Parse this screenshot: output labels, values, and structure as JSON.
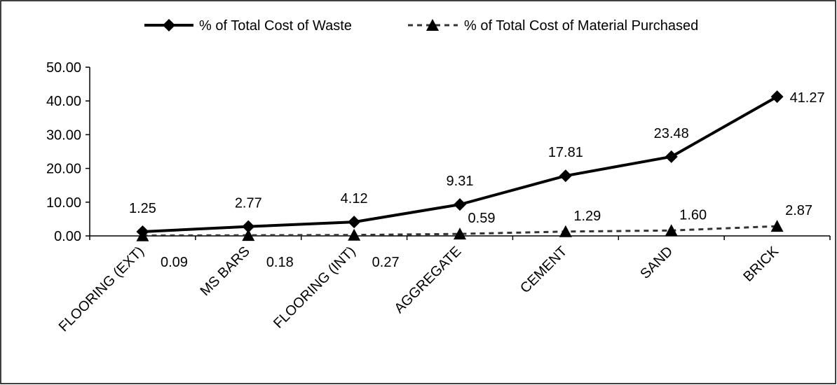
{
  "chart_data": {
    "type": "line",
    "categories": [
      "FLOORING (EXT)",
      "MS BARS",
      "FLOORING (INT)",
      "AGGREGATE",
      "CEMENT",
      "SAND",
      "BRICK"
    ],
    "series": [
      {
        "name": "% of Total Cost of Waste",
        "values": [
          1.25,
          2.77,
          4.12,
          9.31,
          17.81,
          23.48,
          41.27
        ],
        "labels": [
          "1.25",
          "2.77",
          "4.12",
          "9.31",
          "17.81",
          "23.48",
          "41.27"
        ],
        "marker": "diamond",
        "line_style": "solid",
        "color": "#000000"
      },
      {
        "name": "% of Total Cost of Material Purchased",
        "values": [
          0.09,
          0.18,
          0.27,
          0.59,
          1.29,
          1.6,
          2.87
        ],
        "labels": [
          "0.09",
          "0.18",
          "0.27",
          "0.59",
          "1.29",
          "1.60",
          "2.87"
        ],
        "marker": "triangle",
        "line_style": "dashed",
        "color": "#000000"
      }
    ],
    "yticks": [
      "0.00",
      "10.00",
      "20.00",
      "30.00",
      "40.00",
      "50.00"
    ],
    "ylim": [
      0,
      50
    ],
    "grid": false,
    "legend_position": "top"
  }
}
